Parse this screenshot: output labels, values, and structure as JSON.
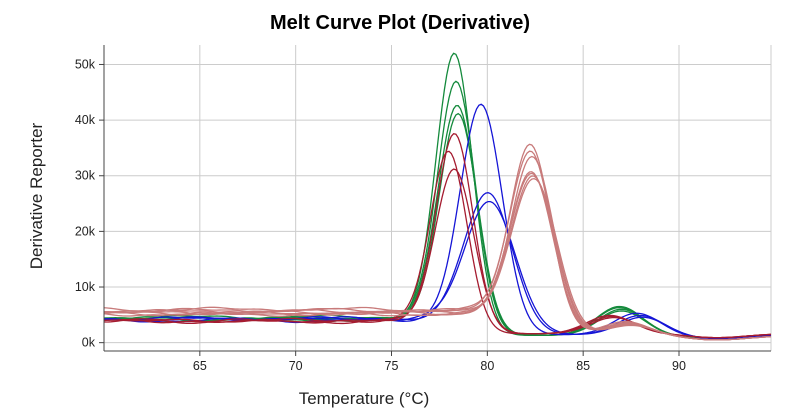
{
  "chart_data": {
    "type": "line",
    "title": "Melt Curve Plot (Derivative)",
    "xlabel": "Temperature (°C)",
    "ylabel": "Derivative Reporter",
    "xlim": [
      60,
      94.8
    ],
    "ylim": [
      -1500,
      53500
    ],
    "x_ticks": [
      65,
      70,
      75,
      80,
      85,
      90
    ],
    "y_ticks": [
      0,
      10000,
      20000,
      30000,
      40000,
      50000
    ],
    "x_tick_labels": [
      "65",
      "70",
      "75",
      "80",
      "85",
      "90"
    ],
    "y_tick_labels": [
      "0k",
      "10k",
      "20k",
      "30k",
      "40k",
      "50k"
    ],
    "grid": true,
    "series": [
      {
        "color": "#148a3c",
        "baseline": 4600,
        "peak_x": 78.3,
        "peak": 49000,
        "width": 0.95,
        "tail_end": 1300,
        "bump_x": 86.9,
        "bump": 5200
      },
      {
        "color": "#148a3c",
        "baseline": 4400,
        "peak_x": 78.4,
        "peak": 44000,
        "width": 0.98,
        "tail_end": 1300,
        "bump_x": 86.9,
        "bump": 5000
      },
      {
        "color": "#148a3c",
        "baseline": 4200,
        "peak_x": 78.45,
        "peak": 40000,
        "width": 1.0,
        "tail_end": 1300,
        "bump_x": 87.0,
        "bump": 4700
      },
      {
        "color": "#148a3c",
        "baseline": 4100,
        "peak_x": 78.5,
        "peak": 38500,
        "width": 1.0,
        "tail_end": 1300,
        "bump_x": 87.0,
        "bump": 4400
      },
      {
        "color": "#1515d6",
        "baseline": 4000,
        "peak_x": 79.7,
        "peak": 40000,
        "width": 1.1,
        "tail_end": 1400,
        "bump_x": 87.8,
        "bump": 3900
      },
      {
        "color": "#1515d6",
        "baseline": 4300,
        "peak_x": 80.1,
        "peak": 24000,
        "width": 1.25,
        "tail_end": 1400,
        "bump_x": 88.0,
        "bump": 3500
      },
      {
        "color": "#1515d6",
        "baseline": 4300,
        "peak_x": 80.2,
        "peak": 22500,
        "width": 1.3,
        "tail_end": 1400,
        "bump_x": 88.1,
        "bump": 3200
      },
      {
        "color": "#a51c30",
        "baseline": 4000,
        "peak_x": 78.0,
        "peak": 31500,
        "width": 0.95,
        "tail_end": 1600,
        "bump_x": 86.4,
        "bump": 3300
      },
      {
        "color": "#a51c30",
        "baseline": 3800,
        "peak_x": 78.3,
        "peak": 35000,
        "width": 0.95,
        "tail_end": 1600,
        "bump_x": 86.5,
        "bump": 3100
      },
      {
        "color": "#a51c30",
        "baseline": 3900,
        "peak_x": 78.3,
        "peak": 28500,
        "width": 1.0,
        "tail_end": 1600,
        "bump_x": 86.6,
        "bump": 2900
      },
      {
        "color": "#c87b7b",
        "baseline": 6000,
        "peak_x": 82.3,
        "peak": 32000,
        "width": 1.05,
        "tail_end": 1200,
        "bump_x": 87.2,
        "bump": 2600
      },
      {
        "color": "#c87b7b",
        "baseline": 5800,
        "peak_x": 82.3,
        "peak": 31000,
        "width": 1.08,
        "tail_end": 1200,
        "bump_x": 87.3,
        "bump": 2400
      },
      {
        "color": "#c87b7b",
        "baseline": 5600,
        "peak_x": 82.4,
        "peak": 30000,
        "width": 1.1,
        "tail_end": 1200,
        "bump_x": 87.3,
        "bump": 2300
      },
      {
        "color": "#c87b7b",
        "baseline": 5400,
        "peak_x": 82.35,
        "peak": 27300,
        "width": 1.12,
        "tail_end": 1200,
        "bump_x": 87.4,
        "bump": 2200
      },
      {
        "color": "#c87b7b",
        "baseline": 5300,
        "peak_x": 82.4,
        "peak": 27000,
        "width": 1.14,
        "tail_end": 1200,
        "bump_x": 87.4,
        "bump": 2100
      },
      {
        "color": "#c87b7b",
        "baseline": 5200,
        "peak_x": 82.45,
        "peak": 26700,
        "width": 1.15,
        "tail_end": 1200,
        "bump_x": 87.5,
        "bump": 2000
      },
      {
        "color": "#c87b7b",
        "baseline": 5100,
        "peak_x": 82.5,
        "peak": 26400,
        "width": 1.17,
        "tail_end": 1200,
        "bump_x": 87.5,
        "bump": 1900
      }
    ]
  }
}
